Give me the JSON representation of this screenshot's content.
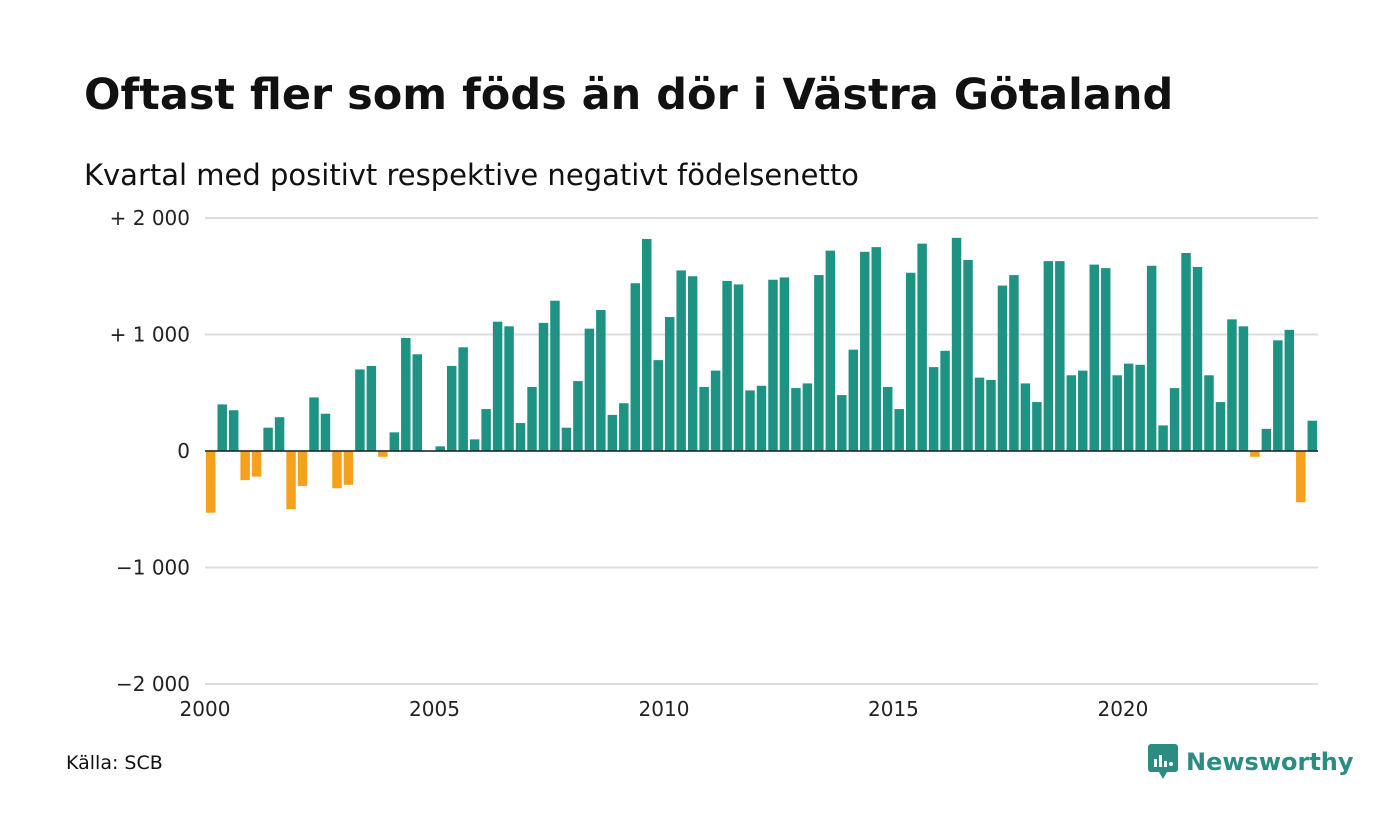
{
  "title": "Oftast fler som föds än dör i Västra Götaland",
  "subtitle": "Kvartal med positivt respektive negativt födelsenetto",
  "source": "Källa: SCB",
  "logo": {
    "text": "Newsworthy",
    "icon": "newsworthy-chat-icon"
  },
  "colors": {
    "positive": "#1f9383",
    "negative": "#f5a11e",
    "grid": "#dddddd",
    "logo": "#2b8c82"
  },
  "chart_data": {
    "type": "bar",
    "ylim": [
      -2000,
      2000
    ],
    "y_ticks": [
      {
        "value": 2000,
        "label": "+ 2 000"
      },
      {
        "value": 1000,
        "label": "+ 1 000"
      },
      {
        "value": 0,
        "label": "0"
      },
      {
        "value": -1000,
        "label": "−1 000"
      },
      {
        "value": -2000,
        "label": "−2 000"
      }
    ],
    "x_ticks": [
      {
        "year": 2000,
        "label": "2000"
      },
      {
        "year": 2005,
        "label": "2005"
      },
      {
        "year": 2010,
        "label": "2010"
      },
      {
        "year": 2015,
        "label": "2015"
      },
      {
        "year": 2020,
        "label": "2020"
      }
    ],
    "start_year": 2000,
    "values": [
      -530,
      400,
      350,
      -250,
      -220,
      200,
      290,
      -500,
      -300,
      460,
      320,
      -320,
      -290,
      700,
      730,
      -50,
      160,
      970,
      830,
      0,
      40,
      730,
      890,
      100,
      360,
      1110,
      1070,
      240,
      550,
      1100,
      1290,
      200,
      600,
      1050,
      1210,
      310,
      410,
      1440,
      1820,
      780,
      1150,
      1550,
      1500,
      550,
      690,
      1460,
      1430,
      520,
      560,
      1470,
      1490,
      540,
      580,
      1510,
      1720,
      480,
      870,
      1710,
      1750,
      550,
      360,
      1530,
      1780,
      720,
      860,
      1830,
      1640,
      630,
      610,
      1420,
      1510,
      580,
      420,
      1630,
      1630,
      650,
      690,
      1600,
      1570,
      650,
      750,
      740,
      1590,
      220,
      540,
      1700,
      1580,
      650,
      420,
      1130,
      1070,
      -50,
      190,
      950,
      1040,
      -440,
      260
    ]
  }
}
